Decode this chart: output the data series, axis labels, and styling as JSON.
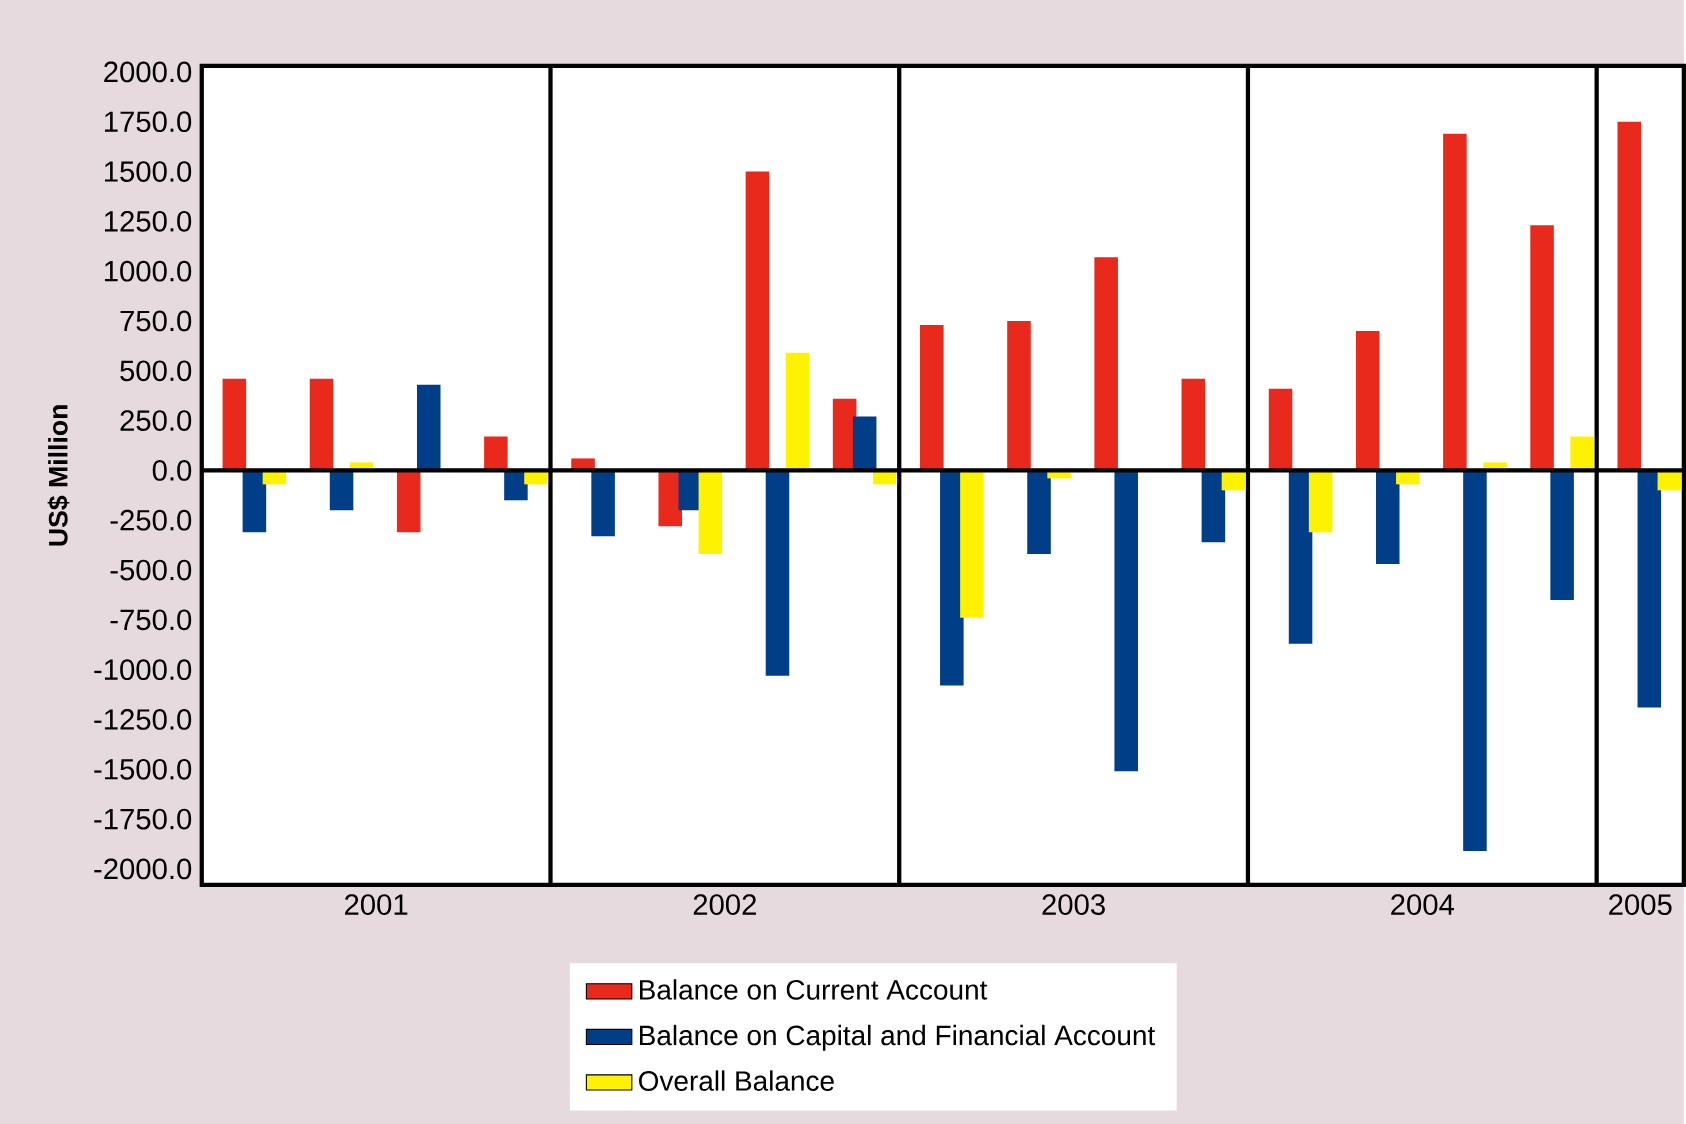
{
  "chart_data": {
    "type": "bar",
    "ylabel": "US$ Million",
    "x": [
      2001.125,
      2001.375,
      2001.625,
      2001.875,
      2002.125,
      2002.375,
      2002.625,
      2002.875,
      2003.125,
      2003.375,
      2003.625,
      2003.875,
      2004.125,
      2004.375,
      2004.625,
      2004.875,
      2005.125
    ],
    "series": [
      {
        "name": "Balance on Current Account",
        "color": "#e8291c",
        "values": [
          460,
          460,
          -310,
          170,
          60,
          -280,
          1500,
          360,
          730,
          750,
          1070,
          460,
          410,
          700,
          1690,
          1230,
          1750
        ]
      },
      {
        "name": "Balance on Capital and Financial Account",
        "color": "#003f87",
        "values": [
          -310,
          -200,
          430,
          -150,
          -330,
          -200,
          -1030,
          270,
          -1080,
          -420,
          -1510,
          -360,
          -870,
          -470,
          -1910,
          -650,
          -1190
        ]
      },
      {
        "name": "Overall Balance",
        "color": "#fff200",
        "values": [
          -70,
          40,
          null,
          -70,
          null,
          -420,
          590,
          -70,
          -740,
          -40,
          null,
          -100,
          -310,
          -70,
          40,
          170,
          -100
        ]
      }
    ],
    "xlim": [
      2001,
      2005.25
    ],
    "xticks": [
      {
        "value": 2001.5,
        "label": "2001"
      },
      {
        "value": 2002.5,
        "label": "2002"
      },
      {
        "value": 2003.5,
        "label": "2003"
      },
      {
        "value": 2004.5,
        "label": "2004"
      },
      {
        "value": 2005.125,
        "label": "2005"
      }
    ],
    "ylim": [
      -2080,
      2030
    ],
    "yticks": [
      {
        "value": 2000,
        "label": "2000.0"
      },
      {
        "value": 1750,
        "label": "1750.0"
      },
      {
        "value": 1500,
        "label": "1500.0"
      },
      {
        "value": 1250,
        "label": "1250.0"
      },
      {
        "value": 1000,
        "label": "1000.0"
      },
      {
        "value": 750,
        "label": "750.0"
      },
      {
        "value": 500,
        "label": "500.0"
      },
      {
        "value": 250,
        "label": "250.0"
      },
      {
        "value": 0,
        "label": "0.0"
      },
      {
        "value": -250,
        "label": "-250.0"
      },
      {
        "value": -500,
        "label": "-500.0"
      },
      {
        "value": -750,
        "label": "-750.0"
      },
      {
        "value": -1000,
        "label": "-1000.0"
      },
      {
        "value": -1250,
        "label": "-1250.0"
      },
      {
        "value": -1500,
        "label": "-1500.0"
      },
      {
        "value": -1750,
        "label": "-1750.0"
      },
      {
        "value": -2000,
        "label": "-2000.0"
      }
    ],
    "ref_lines": [
      {
        "axis": "y",
        "value": 0
      }
    ],
    "grid": "x",
    "legend": "bottom"
  }
}
